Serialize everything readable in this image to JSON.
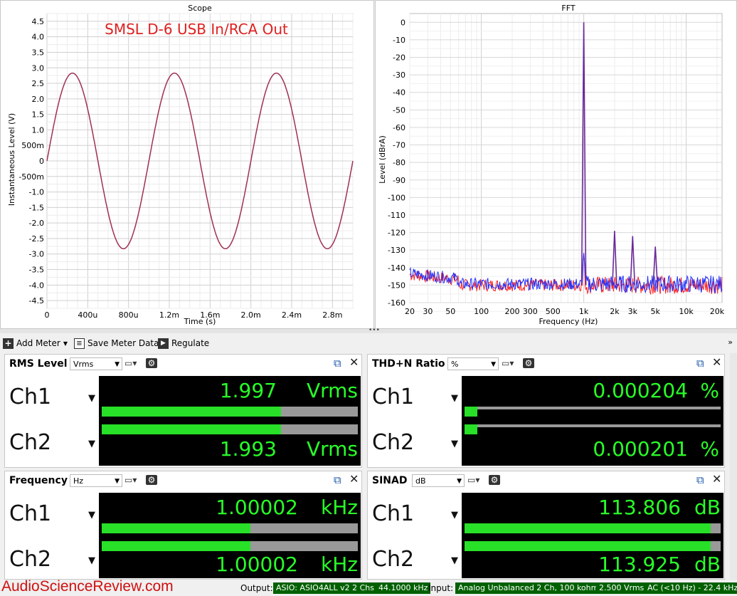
{
  "scope": {
    "title": "Scope",
    "overlay_title": "SMSL D-6 USB In/RCA Out",
    "xlabel": "Time (s)",
    "ylabel": "Instantaneous Level (V)",
    "x_ticks": [
      "0",
      "400u",
      "800u",
      "1.2m",
      "1.6m",
      "2.0m",
      "2.4m",
      "2.8m"
    ],
    "y_ticks": [
      "4.5",
      "4.0",
      "3.5",
      "3.0",
      "2.5",
      "2.0",
      "1.5",
      "1.0",
      "500m",
      "0",
      "-500m",
      "-1.0",
      "-1.5",
      "-2.0",
      "-2.5",
      "-3.0",
      "-3.5",
      "-4.0",
      "-4.5"
    ]
  },
  "fft": {
    "title": "FFT",
    "xlabel": "Frequency (Hz)",
    "ylabel": "Level (dBrA)",
    "x_ticks": [
      "20",
      "30",
      "50",
      "100",
      "200",
      "300",
      "500",
      "1k",
      "2k",
      "3k",
      "5k",
      "10k",
      "20k"
    ],
    "y_ticks": [
      "0",
      "-10",
      "-20",
      "-30",
      "-40",
      "-50",
      "-60",
      "-70",
      "-80",
      "-90",
      "-100",
      "-110",
      "-120",
      "-130",
      "-140",
      "-150",
      "-160"
    ]
  },
  "chart_data": [
    {
      "type": "line",
      "title": "Scope",
      "xlabel": "Time (s)",
      "ylabel": "Instantaneous Level (V)",
      "xlim": [
        0,
        0.003
      ],
      "ylim": [
        -4.75,
        4.75
      ],
      "grid": true,
      "series": [
        {
          "frequency_hz": 1000,
          "amplitude_v": 2.83,
          "color": "#a03050"
        }
      ]
    },
    {
      "type": "line",
      "title": "FFT",
      "xlabel": "Frequency (Hz)",
      "ylabel": "Level (dBrA)",
      "xscale": "log",
      "xlim": [
        20,
        22400
      ],
      "ylim": [
        -160,
        5
      ],
      "grid": true,
      "peaks": [
        {
          "x": 1000,
          "y": 0
        },
        {
          "x": 2000,
          "y": -119
        },
        {
          "x": 3000,
          "y": -122
        },
        {
          "x": 5000,
          "y": -128
        }
      ],
      "noise_floor": -150,
      "series": [
        {
          "color": "#ff2020"
        },
        {
          "color": "#2030ff"
        }
      ]
    }
  ],
  "toolbar": {
    "add_meter": "Add Meter",
    "save_meter_data": "Save Meter Data",
    "regulate": "Regulate"
  },
  "meters": {
    "rms": {
      "title": "RMS Level",
      "unit_select": "Vrms",
      "ch1": {
        "label": "Ch1",
        "value": "1.997",
        "unit": "Vrms",
        "bar_fraction": 0.7
      },
      "ch2": {
        "label": "Ch2",
        "value": "1.993",
        "unit": "Vrms",
        "bar_fraction": 0.7
      }
    },
    "thdn": {
      "title": "THD+N Ratio",
      "unit_select": "%",
      "ch1": {
        "label": "Ch1",
        "value": "0.000204",
        "unit": "%",
        "bar_fraction": 0.05
      },
      "ch2": {
        "label": "Ch2",
        "value": "0.000201",
        "unit": "%",
        "bar_fraction": 0.05
      }
    },
    "freq": {
      "title": "Frequency",
      "unit_select": "Hz",
      "ch1": {
        "label": "Ch1",
        "value": "1.00002",
        "unit": "kHz",
        "bar_fraction": 0.58
      },
      "ch2": {
        "label": "Ch2",
        "value": "1.00002",
        "unit": "kHz",
        "bar_fraction": 0.58
      }
    },
    "sinad": {
      "title": "SINAD",
      "unit_select": "dB",
      "ch1": {
        "label": "Ch1",
        "value": "113.806",
        "unit": "dB",
        "bar_fraction": 0.96
      },
      "ch2": {
        "label": "Ch2",
        "value": "113.925",
        "unit": "dB",
        "bar_fraction": 0.96
      }
    }
  },
  "status": {
    "output_label": "Output:",
    "output_device": "ASIO: ASIO4ALL v2 2 Chs",
    "output_rate": "44.1000 kHz",
    "input_label": "Input:",
    "input_device": "Analog Unbalanced 2 Ch, 100 kohm",
    "input_range": "2.500 Vrms",
    "input_filter": "AC (<10 Hz) - 22.4 kHz",
    "watermark": "AudioScienceReview.com"
  }
}
